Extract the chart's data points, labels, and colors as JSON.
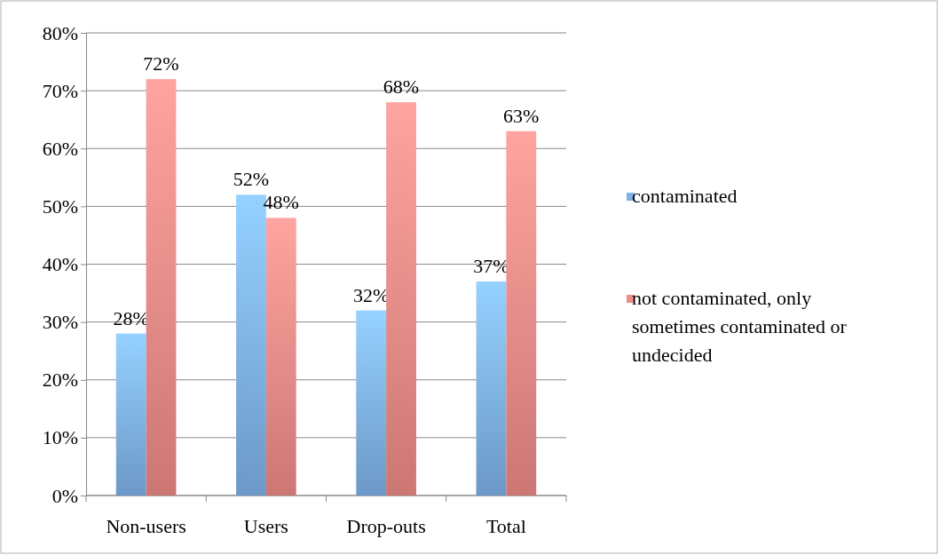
{
  "chart_data": {
    "type": "bar",
    "categories": [
      "Non-users",
      "Users",
      "Drop-outs",
      "Total"
    ],
    "series": [
      {
        "name": "contaminated",
        "color": "#7fb2ea",
        "values": [
          28,
          52,
          32,
          37
        ],
        "value_labels": [
          "28%",
          "52%",
          "32%",
          "37%"
        ]
      },
      {
        "name": "not contaminated, only sometimes contaminated or undecided",
        "color": "#f08c88",
        "values": [
          72,
          48,
          68,
          63
        ],
        "value_labels": [
          "72%",
          "48%",
          "68%",
          "63%"
        ]
      }
    ],
    "ylim": [
      0,
      80
    ],
    "yticks": [
      {
        "value": 0,
        "label": "0%"
      },
      {
        "value": 10,
        "label": "10%"
      },
      {
        "value": 20,
        "label": "20%"
      },
      {
        "value": 30,
        "label": "30%"
      },
      {
        "value": 40,
        "label": "40%"
      },
      {
        "value": 50,
        "label": "50%"
      },
      {
        "value": 60,
        "label": "60%"
      },
      {
        "value": 70,
        "label": "70%"
      },
      {
        "value": 80,
        "label": "80%"
      }
    ],
    "grid": "y",
    "legend": "right"
  }
}
